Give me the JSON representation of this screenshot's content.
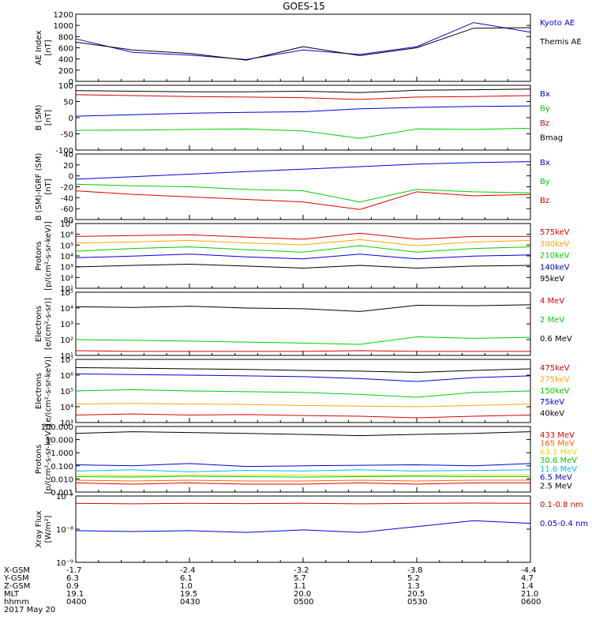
{
  "title": "GOES-15",
  "x_ticks": [
    "",
    "",
    "",
    "",
    ""
  ],
  "footer": {
    "rows": [
      {
        "label": "X-GSM",
        "values": [
          "-1.7",
          "-2.4",
          "-3.2",
          "-3.8",
          "-4.4"
        ]
      },
      {
        "label": "Y-GSM",
        "values": [
          "6.3",
          "6.1",
          "5.7",
          "5.2",
          "4.7"
        ]
      },
      {
        "label": "Z-GSM",
        "values": [
          "0.9",
          "1.0",
          "1.1",
          "1.3",
          "1.4"
        ]
      },
      {
        "label": "MLT",
        "values": [
          "19.1",
          "19.5",
          "20.0",
          "20.5",
          "21.0"
        ]
      },
      {
        "label": "hhmm",
        "values": [
          "0400",
          "0430",
          "0500",
          "0530",
          "0600"
        ]
      }
    ],
    "date": "2017 May 20"
  },
  "chart_data": [
    {
      "type": "line",
      "ylabel": [
        "AE Index",
        "[nT]"
      ],
      "yscale": "linear",
      "ylim": [
        0,
        1200
      ],
      "yticks": [
        "0",
        "200",
        "400",
        "600",
        "800",
        "1000",
        "1200"
      ],
      "x": [
        "0400",
        "0415",
        "0430",
        "0445",
        "0500",
        "0515",
        "0530",
        "0545",
        "0600"
      ],
      "series": [
        {
          "name": "Kyoto AE",
          "color": "#0000dd",
          "values": [
            760,
            520,
            470,
            390,
            560,
            480,
            620,
            1050,
            880
          ]
        },
        {
          "name": "Themis AE",
          "color": "#000000",
          "values": [
            700,
            560,
            500,
            380,
            620,
            460,
            600,
            950,
            960
          ]
        }
      ]
    },
    {
      "type": "line",
      "ylabel": [
        "B (SM)",
        "[nT]"
      ],
      "yscale": "linear",
      "ylim": [
        -110,
        110
      ],
      "yticks": [
        "-100",
        "-50",
        "0",
        "50",
        "100"
      ],
      "x": [
        "0400",
        "0415",
        "0430",
        "0445",
        "0500",
        "0515",
        "0530",
        "0545",
        "0600"
      ],
      "series": [
        {
          "name": "Bx",
          "color": "#0000dd",
          "values": [
            5,
            10,
            15,
            18,
            20,
            30,
            35,
            38,
            40
          ]
        },
        {
          "name": "By",
          "color": "#00cc00",
          "values": [
            -43,
            -42,
            -40,
            -38,
            -45,
            -70,
            -38,
            -40,
            -36
          ]
        },
        {
          "name": "Bz",
          "color": "#dd0000",
          "values": [
            78,
            75,
            72,
            70,
            68,
            62,
            70,
            72,
            75
          ]
        },
        {
          "name": "Bmag",
          "color": "#000000",
          "values": [
            92,
            90,
            88,
            88,
            90,
            85,
            93,
            95,
            97
          ]
        }
      ]
    },
    {
      "type": "line",
      "ylabel": [
        "B (SM)-IGRF (SM)",
        "[nT]"
      ],
      "yscale": "linear",
      "ylim": [
        -85,
        45
      ],
      "yticks": [
        "-80",
        "-60",
        "-40",
        "-20",
        "0",
        "20",
        "40"
      ],
      "x": [
        "0400",
        "0415",
        "0430",
        "0445",
        "0500",
        "0515",
        "0530",
        "0545",
        "0600"
      ],
      "series": [
        {
          "name": "Bx",
          "color": "#0000dd",
          "values": [
            -5,
            0,
            5,
            10,
            15,
            20,
            25,
            28,
            30
          ]
        },
        {
          "name": "By",
          "color": "#00cc00",
          "values": [
            -15,
            -18,
            -20,
            -25,
            -28,
            -50,
            -25,
            -30,
            -32
          ]
        },
        {
          "name": "Bz",
          "color": "#dd0000",
          "values": [
            -28,
            -35,
            -40,
            -45,
            -50,
            -65,
            -30,
            -38,
            -35
          ]
        }
      ]
    },
    {
      "type": "line",
      "ylabel": [
        "Protons",
        "[p/(cm²-s-sr-keV)]"
      ],
      "yscale": "log",
      "ylim": [
        1,
        10000000
      ],
      "yticks": [
        "10¹",
        "10²",
        "10³",
        "10⁴",
        "10⁵",
        "10⁶",
        "10⁷"
      ],
      "x": [
        "0400",
        "0415",
        "0430",
        "0445",
        "0500",
        "0515",
        "0530",
        "0545",
        "0600"
      ],
      "series": [
        {
          "name": "575keV",
          "color": "#dd0000",
          "values": [
            400000,
            500000,
            600000,
            350000,
            200000,
            900000,
            200000,
            400000,
            400000
          ]
        },
        {
          "name": "300keV",
          "color": "#ffa500",
          "values": [
            80000,
            100000,
            150000,
            80000,
            50000,
            180000,
            40000,
            100000,
            150000
          ]
        },
        {
          "name": "210keV",
          "color": "#00cc00",
          "values": [
            10000,
            20000,
            30000,
            15000,
            8000,
            40000,
            8000,
            20000,
            30000
          ]
        },
        {
          "name": "140keV",
          "color": "#0000dd",
          "values": [
            2000,
            3000,
            5000,
            2500,
            1500,
            5000,
            1500,
            3000,
            4000
          ]
        },
        {
          "name": "95keV",
          "color": "#000000",
          "values": [
            200,
            300,
            400,
            250,
            150,
            300,
            150,
            250,
            300
          ]
        }
      ]
    },
    {
      "type": "line",
      "ylabel": [
        "Electrons",
        "[e/(cm²-s-sr)]"
      ],
      "yscale": "log",
      "ylim": [
        10,
        100000
      ],
      "yticks": [
        "10¹",
        "10²",
        "10³",
        "10⁴",
        "10⁵"
      ],
      "x": [
        "0400",
        "0415",
        "0430",
        "0445",
        "0500",
        "0515",
        "0530",
        "0545",
        "0600"
      ],
      "series": [
        {
          "name": "4 MeV",
          "color": "#dd0000",
          "values": [
            20,
            18,
            18,
            18,
            18,
            20,
            18,
            18,
            18
          ]
        },
        {
          "name": "2 MeV",
          "color": "#00cc00",
          "values": [
            100,
            90,
            80,
            70,
            60,
            50,
            150,
            120,
            140
          ]
        },
        {
          "name": "0.6 MeV",
          "color": "#000000",
          "values": [
            12000,
            11000,
            13000,
            10000,
            9000,
            6000,
            15000,
            14000,
            16000
          ]
        }
      ]
    },
    {
      "type": "line",
      "ylabel": [
        "Electrons",
        "[e/(cm²-s-sr-keV)]"
      ],
      "yscale": "log",
      "ylim": [
        1000,
        10000000
      ],
      "yticks": [
        "10³",
        "10⁴",
        "10⁵",
        "10⁶",
        "10⁷"
      ],
      "x": [
        "0400",
        "0415",
        "0430",
        "0445",
        "0500",
        "0515",
        "0530",
        "0545",
        "0600"
      ],
      "series": [
        {
          "name": "475keV",
          "color": "#dd0000",
          "values": [
            3000,
            3500,
            3000,
            3200,
            2800,
            2500,
            2000,
            2500,
            3000
          ]
        },
        {
          "name": "275keV",
          "color": "#ffa500",
          "values": [
            15000,
            16000,
            15000,
            14000,
            12000,
            11000,
            10000,
            12000,
            15000
          ]
        },
        {
          "name": "150keV",
          "color": "#00cc00",
          "values": [
            100000,
            120000,
            100000,
            90000,
            80000,
            60000,
            40000,
            80000,
            100000
          ]
        },
        {
          "name": "75keV",
          "color": "#0000dd",
          "values": [
            1200000,
            1100000,
            1000000,
            900000,
            800000,
            600000,
            400000,
            700000,
            900000
          ]
        },
        {
          "name": "40keV",
          "color": "#000000",
          "values": [
            3000000,
            2800000,
            2500000,
            2300000,
            2000000,
            1800000,
            1500000,
            2000000,
            2500000
          ]
        }
      ]
    },
    {
      "type": "line",
      "ylabel": [
        "Protons",
        "[p/(cm²-s-sr-keV)]"
      ],
      "yscale": "log",
      "ylim": [
        0.001,
        100
      ],
      "yticks": [
        "0.001",
        "0.010",
        "0.100",
        "1.000",
        "10.000",
        "100.000"
      ],
      "x": [
        "0400",
        "0415",
        "0430",
        "0445",
        "0500",
        "0515",
        "0530",
        "0545",
        "0600"
      ],
      "series": [
        {
          "name": "433 MeV",
          "color": "#dd0000",
          "values": [
            0.005,
            0.004,
            0.005,
            0.004,
            0.004,
            0.005,
            0.004,
            0.005,
            0.005
          ]
        },
        {
          "name": "165 MeV",
          "color": "#ff6600",
          "values": [
            0.008,
            0.007,
            0.008,
            0.007,
            0.007,
            0.008,
            0.007,
            0.008,
            0.008
          ]
        },
        {
          "name": "63.1 MeV",
          "color": "#dddd00",
          "values": [
            0.02,
            0.018,
            0.02,
            0.019,
            0.02,
            0.018,
            0.019,
            0.02,
            0.02
          ]
        },
        {
          "name": "30.6 MeV",
          "color": "#00cc00",
          "values": [
            0.015,
            0.014,
            0.016,
            0.015,
            0.014,
            0.015,
            0.016,
            0.015,
            0.015
          ]
        },
        {
          "name": "11.6 MeV",
          "color": "#00bbee",
          "values": [
            0.04,
            0.05,
            0.035,
            0.045,
            0.04,
            0.05,
            0.04,
            0.045,
            0.05
          ]
        },
        {
          "name": "6.5 MeV",
          "color": "#0000dd",
          "values": [
            0.12,
            0.1,
            0.15,
            0.09,
            0.1,
            0.11,
            0.12,
            0.1,
            0.15
          ]
        },
        {
          "name": "2.5 MeV",
          "color": "#000000",
          "values": [
            30,
            40,
            35,
            30,
            25,
            20,
            25,
            30,
            40
          ]
        }
      ]
    },
    {
      "type": "line",
      "ylabel": [
        "Xray Flux",
        "[W/m²]"
      ],
      "yscale": "log",
      "ylim": [
        1e-09,
        1e-07
      ],
      "yticks": [
        "10⁻⁹",
        "10⁻⁸",
        "10⁻⁷"
      ],
      "x": [
        "0400",
        "0415",
        "0430",
        "0445",
        "0500",
        "0515",
        "0530",
        "0545",
        "0600"
      ],
      "series": [
        {
          "name": "0.1-0.8 nm",
          "color": "#dd0000",
          "values": [
            6e-08,
            5.8e-08,
            6e-08,
            5.9e-08,
            6e-08,
            5.8e-08,
            6e-08,
            6.1e-08,
            6e-08
          ]
        },
        {
          "name": "0.05-0.4 nm",
          "color": "#0000dd",
          "values": [
            9e-09,
            8.5e-09,
            9e-09,
            8e-09,
            9.5e-09,
            8e-09,
            1.2e-08,
            1.8e-08,
            1.5e-08
          ]
        }
      ]
    }
  ]
}
